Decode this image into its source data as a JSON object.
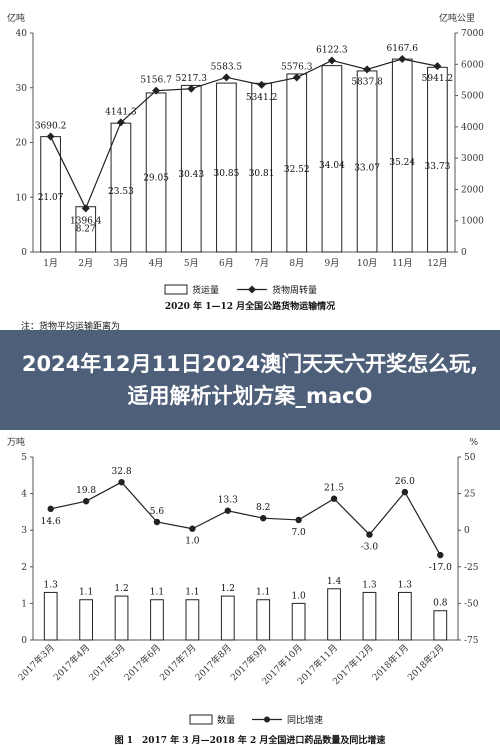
{
  "banner": {
    "title": "2024年12月11日2024澳门天天六开奖怎么玩,适用解析计划方案_macO"
  },
  "chart_data": [
    {
      "type": "bar",
      "title": "2020 年 1—12 月全国公路货物运输情况",
      "obscured_text": "注：货物平均运输距离为",
      "left_unit": "亿吨",
      "right_unit": "亿吨公里",
      "categories": [
        "1月",
        "2月",
        "3月",
        "4月",
        "5月",
        "6月",
        "7月",
        "8月",
        "9月",
        "10月",
        "11月",
        "12月"
      ],
      "left_axis": {
        "ylim": [
          0,
          40
        ],
        "ticks": [
          0,
          10,
          20,
          30,
          40
        ]
      },
      "right_axis": {
        "ylim": [
          0,
          7000
        ],
        "ticks": [
          0,
          1000,
          2000,
          3000,
          4000,
          5000,
          6000,
          7000
        ]
      },
      "series": [
        {
          "name": "货运量",
          "kind": "bar",
          "axis": "left",
          "values": [
            21.07,
            8.27,
            23.53,
            29.05,
            30.43,
            30.85,
            30.81,
            32.52,
            34.04,
            33.07,
            35.24,
            33.73
          ]
        },
        {
          "name": "货物周转量",
          "kind": "line",
          "axis": "right",
          "values": [
            3690.2,
            1396.4,
            4141.3,
            5156.7,
            5217.3,
            5583.5,
            5341.2,
            5576.3,
            6122.3,
            5837.8,
            6167.6,
            5941.2
          ]
        }
      ],
      "legend": "bottom",
      "color": "#222222"
    },
    {
      "type": "bar",
      "title": "图 1　2017 年 3 月—2018 年 2 月全国进口药品数量及同比增速",
      "left_unit": "万吨",
      "right_unit": "%",
      "categories": [
        "2017年3月",
        "2017年4月",
        "2017年5月",
        "2017年6月",
        "2017年7月",
        "2017年8月",
        "2017年9月",
        "2017年10月",
        "2017年11月",
        "2017年12月",
        "2018年1月",
        "2018年2月"
      ],
      "left_axis": {
        "ylim": [
          0,
          5
        ],
        "ticks": [
          0,
          1,
          2,
          3,
          4,
          5
        ]
      },
      "right_axis": {
        "ylim": [
          -75,
          50
        ],
        "ticks": [
          -75,
          -50,
          -25,
          0,
          25,
          50
        ]
      },
      "series": [
        {
          "name": "数量",
          "kind": "bar",
          "axis": "left",
          "values": [
            1.3,
            1.1,
            1.2,
            1.1,
            1.1,
            1.2,
            1.1,
            1.0,
            1.4,
            1.3,
            1.3,
            0.8
          ]
        },
        {
          "name": "同比增速",
          "kind": "line",
          "axis": "right",
          "values": [
            14.6,
            19.8,
            32.8,
            5.6,
            1.0,
            13.3,
            8.2,
            7.0,
            21.5,
            -3.0,
            26.0,
            -17.0
          ]
        }
      ],
      "legend": "bottom",
      "color": "#222222"
    }
  ]
}
